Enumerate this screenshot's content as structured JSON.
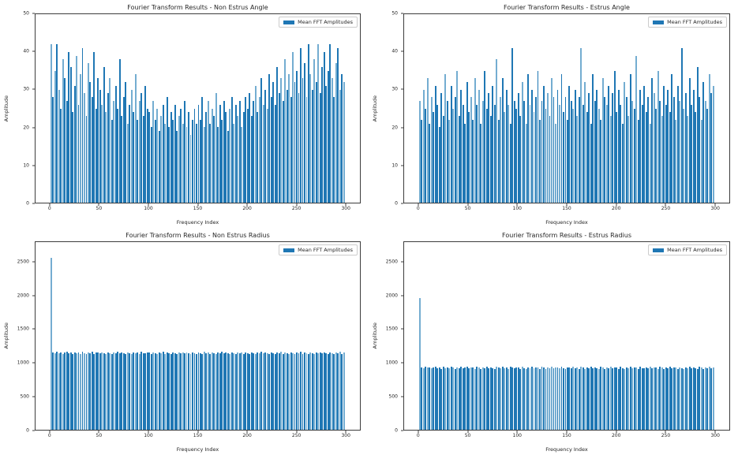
{
  "colors": {
    "bar": "#1f77b4",
    "bar_light": "#74add1",
    "spine": "#3c3c3c",
    "text": "#262626",
    "legend_border": "#cccccc",
    "background": "#ffffff"
  },
  "chart_data": [
    {
      "type": "bar",
      "title": "Fourier Transform Results - Non Estrus Angle",
      "xlabel": "Frequency Index",
      "ylabel": "Amplitude",
      "legend_label": "Mean FFT Amplitudes",
      "legend_position": "upper right",
      "grid": false,
      "xlim": [
        -15,
        315
      ],
      "ylim": [
        0,
        50
      ],
      "xticks": [
        0,
        50,
        100,
        150,
        200,
        250,
        300
      ],
      "yticks": [
        0,
        10,
        20,
        30,
        40,
        50
      ],
      "x_start": 0,
      "x_step": 2,
      "values": [
        42,
        28,
        35,
        42,
        30,
        25,
        38,
        33,
        27,
        40,
        36,
        24,
        31,
        39,
        26,
        34,
        41,
        29,
        23,
        37,
        32,
        28,
        40,
        25,
        33,
        30,
        26,
        36,
        24,
        29,
        33,
        22,
        27,
        31,
        25,
        38,
        23,
        28,
        32,
        21,
        26,
        30,
        24,
        34,
        22,
        27,
        29,
        23,
        31,
        25,
        24,
        20,
        27,
        22,
        25,
        19,
        23,
        26,
        21,
        28,
        20,
        24,
        22,
        26,
        19,
        23,
        25,
        21,
        27,
        20,
        24,
        18,
        22,
        25,
        21,
        26,
        22,
        28,
        20,
        24,
        27,
        21,
        25,
        23,
        29,
        20,
        26,
        22,
        27,
        24,
        19,
        25,
        28,
        21,
        26,
        23,
        27,
        20,
        24,
        28,
        25,
        29,
        23,
        27,
        31,
        24,
        28,
        33,
        26,
        30,
        25,
        34,
        28,
        32,
        26,
        36,
        29,
        33,
        27,
        38,
        30,
        34,
        28,
        40,
        32,
        35,
        29,
        41,
        33,
        37,
        28,
        42,
        34,
        30,
        38,
        32,
        42,
        29,
        36,
        40,
        31,
        35,
        42,
        33,
        28,
        37,
        41,
        30,
        34,
        32
      ]
    },
    {
      "type": "bar",
      "title": "Fourier Transform Results - Estrus Angle",
      "xlabel": "Frequency Index",
      "ylabel": "Amplitude",
      "legend_label": "Mean FFT Amplitudes",
      "legend_position": "upper right",
      "grid": false,
      "xlim": [
        -15,
        315
      ],
      "ylim": [
        0,
        50
      ],
      "xticks": [
        0,
        50,
        100,
        150,
        200,
        250,
        300
      ],
      "yticks": [
        0,
        10,
        20,
        30,
        40,
        50
      ],
      "x_start": 0,
      "x_step": 2,
      "values": [
        27,
        22,
        30,
        25,
        33,
        21,
        28,
        24,
        31,
        26,
        20,
        29,
        23,
        34,
        27,
        22,
        31,
        25,
        28,
        35,
        23,
        30,
        26,
        21,
        32,
        24,
        28,
        22,
        33,
        26,
        30,
        21,
        27,
        35,
        25,
        29,
        23,
        31,
        26,
        38,
        22,
        28,
        33,
        24,
        30,
        26,
        21,
        41,
        27,
        25,
        29,
        23,
        32,
        27,
        21,
        34,
        26,
        30,
        24,
        28,
        35,
        22,
        27,
        31,
        25,
        29,
        23,
        33,
        28,
        21,
        30,
        26,
        34,
        24,
        28,
        22,
        31,
        27,
        25,
        30,
        23,
        28,
        41,
        26,
        32,
        24,
        29,
        21,
        34,
        27,
        30,
        25,
        22,
        33,
        28,
        26,
        31,
        23,
        29,
        35,
        24,
        30,
        26,
        21,
        32,
        28,
        23,
        34,
        27,
        25,
        39,
        22,
        30,
        26,
        31,
        24,
        28,
        21,
        33,
        29,
        25,
        35,
        27,
        23,
        31,
        26,
        30,
        24,
        34,
        28,
        22,
        31,
        27,
        41,
        25,
        29,
        23,
        33,
        26,
        30,
        24,
        36,
        28,
        22,
        32,
        27,
        25,
        34,
        29,
        31
      ]
    },
    {
      "type": "bar",
      "title": "Fourier Transform Results - Non Estrus Radius",
      "xlabel": "Frequency Index",
      "ylabel": "Amplitude",
      "legend_label": "Mean FFT Amplitudes",
      "legend_position": "upper right",
      "grid": false,
      "xlim": [
        -15,
        315
      ],
      "ylim": [
        0,
        2800
      ],
      "xticks": [
        0,
        50,
        100,
        150,
        200,
        250,
        300
      ],
      "yticks": [
        0,
        500,
        1000,
        1500,
        2000,
        2500
      ],
      "x_start": 0,
      "x_step": 2,
      "values": [
        2560,
        1150,
        1138,
        1162,
        1145,
        1155,
        1132,
        1148,
        1165,
        1140,
        1152,
        1128,
        1158,
        1143,
        1150,
        1135,
        1160,
        1147,
        1126,
        1154,
        1141,
        1163,
        1133,
        1149,
        1157,
        1138,
        1152,
        1144,
        1130,
        1159,
        1146,
        1125,
        1153,
        1140,
        1161,
        1136,
        1150,
        1143,
        1128,
        1156,
        1147,
        1134,
        1158,
        1142,
        1151,
        1129,
        1160,
        1145,
        1137,
        1154,
        1148,
        1131,
        1157,
        1143,
        1126,
        1152,
        1139,
        1161,
        1135,
        1149,
        1144,
        1130,
        1158,
        1146,
        1127,
        1153,
        1141,
        1159,
        1136,
        1150,
        1145,
        1132,
        1156,
        1142,
        1128,
        1154,
        1147,
        1133,
        1160,
        1138,
        1151,
        1129,
        1157,
        1144,
        1125,
        1152,
        1140,
        1162,
        1137,
        1148,
        1143,
        1131,
        1159,
        1146,
        1126,
        1155,
        1141,
        1158,
        1134,
        1150,
        1147,
        1130,
        1156,
        1142,
        1127,
        1153,
        1139,
        1161,
        1136,
        1149,
        1145,
        1128,
        1157,
        1143,
        1132,
        1151,
        1138,
        1160,
        1135,
        1148,
        1144,
        1129,
        1158,
        1146,
        1126,
        1154,
        1140,
        1162,
        1133,
        1150,
        1147,
        1131,
        1155,
        1141,
        1128,
        1152,
        1139,
        1159,
        1136,
        1149,
        1143,
        1130,
        1157,
        1145,
        1127,
        1153,
        1138,
        1160,
        1134,
        1151
      ]
    },
    {
      "type": "bar",
      "title": "Fourier Transform Results - Estrus Radius",
      "xlabel": "Frequency Index",
      "ylabel": "Amplitude",
      "legend_label": "Mean FFT Amplitudes",
      "legend_position": "upper right",
      "grid": false,
      "xlim": [
        -15,
        315
      ],
      "ylim": [
        0,
        2800
      ],
      "xticks": [
        0,
        50,
        100,
        150,
        200,
        250,
        300
      ],
      "yticks": [
        0,
        500,
        1000,
        1500,
        2000,
        2500
      ],
      "x_start": 0,
      "x_step": 2,
      "values": [
        1960,
        930,
        918,
        942,
        925,
        935,
        912,
        928,
        945,
        920,
        932,
        908,
        938,
        923,
        930,
        915,
        940,
        927,
        906,
        934,
        921,
        943,
        913,
        929,
        937,
        918,
        932,
        924,
        910,
        939,
        926,
        905,
        933,
        920,
        941,
        916,
        930,
        923,
        908,
        936,
        927,
        914,
        938,
        922,
        931,
        909,
        940,
        925,
        917,
        934,
        928,
        911,
        937,
        923,
        906,
        932,
        919,
        941,
        915,
        929,
        924,
        910,
        938,
        926,
        907,
        933,
        921,
        939,
        916,
        930,
        925,
        912,
        936,
        922,
        908,
        934,
        927,
        913,
        940,
        918,
        931,
        909,
        937,
        924,
        905,
        932,
        920,
        942,
        917,
        928,
        923,
        911,
        939,
        926,
        906,
        935,
        921,
        938,
        914,
        930,
        927,
        910,
        936,
        922,
        907,
        933,
        919,
        941,
        916,
        929,
        925,
        908,
        937,
        923,
        912,
        931,
        918,
        940,
        915,
        928,
        924,
        909,
        938,
        926,
        906,
        934,
        920,
        942,
        913,
        930,
        927,
        911,
        935,
        921,
        908,
        932,
        919,
        939,
        916,
        929,
        923,
        910,
        937,
        925,
        907,
        933,
        918,
        940,
        914,
        931
      ]
    }
  ]
}
